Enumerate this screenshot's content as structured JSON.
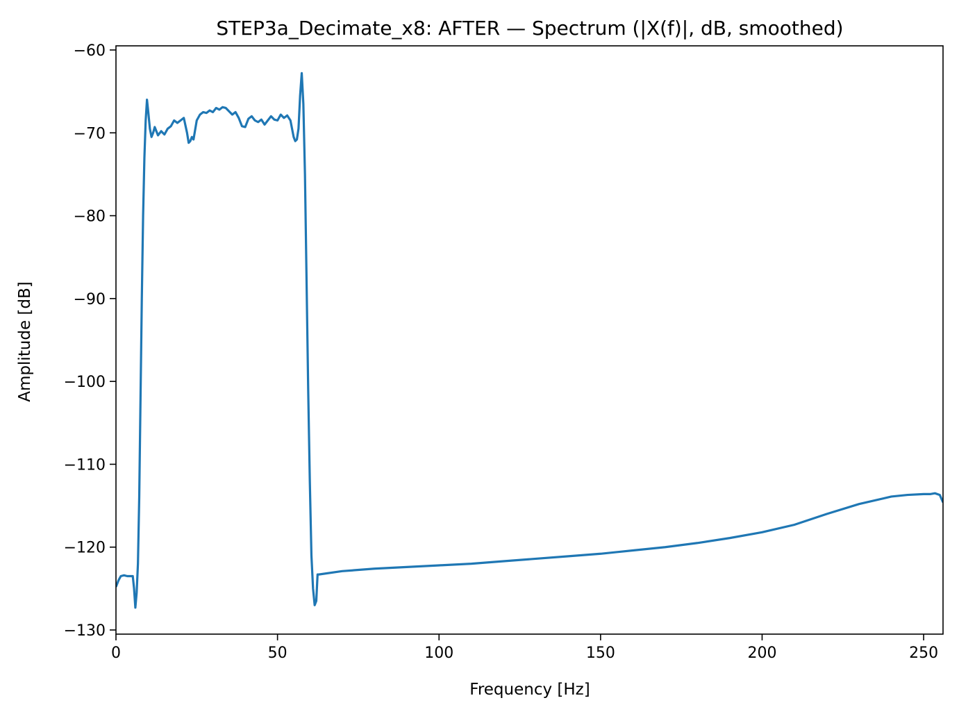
{
  "chart_data": {
    "type": "line",
    "title": "STEP3a_Decimate_x8: AFTER — Spectrum (|X(f)|, dB, smoothed)",
    "xlabel": "Frequency [Hz]",
    "ylabel": "Amplitude [dB]",
    "xlim": [
      0,
      256
    ],
    "ylim": [
      -130.5,
      -59.5
    ],
    "x_ticks": [
      0,
      50,
      100,
      150,
      200,
      250
    ],
    "y_ticks": [
      -60,
      -70,
      -80,
      -90,
      -100,
      -110,
      -120,
      -130
    ],
    "x_tick_labels": [
      "0",
      "50",
      "100",
      "150",
      "200",
      "250"
    ],
    "y_tick_labels": [
      "−60",
      "−70",
      "−80",
      "−90",
      "−100",
      "−110",
      "−120",
      "−130"
    ],
    "grid": false,
    "series": [
      {
        "color": "#1f77b4",
        "x": [
          0,
          0.8,
          1.5,
          2.5,
          3.5,
          4.5,
          5.2,
          5.6,
          6.0,
          6.4,
          6.8,
          7.2,
          7.6,
          8.0,
          8.4,
          8.8,
          9.2,
          9.6,
          10.0,
          10.5,
          11.0,
          11.5,
          12.0,
          12.5,
          13.0,
          14.0,
          15.0,
          16.0,
          17.0,
          18.0,
          19.0,
          20.0,
          21.0,
          22.0,
          22.5,
          23.0,
          23.5,
          24.0,
          25.0,
          26.0,
          27.0,
          28.0,
          29.0,
          30.0,
          31.0,
          32.0,
          33.0,
          34.0,
          35.0,
          36.0,
          37.0,
          38.0,
          39.0,
          40.0,
          41.0,
          42.0,
          43.0,
          44.0,
          45.0,
          46.0,
          47.0,
          48.0,
          49.0,
          50.0,
          51.0,
          52.0,
          53.0,
          54.0,
          55.0,
          55.5,
          56.0,
          56.5,
          57.0,
          57.5,
          58.0,
          58.5,
          59.0,
          59.5,
          60.0,
          60.5,
          61.0,
          61.5,
          62.0,
          62.4,
          62.8,
          70,
          80,
          90,
          100,
          110,
          120,
          130,
          140,
          150,
          160,
          170,
          180,
          190,
          200,
          210,
          220,
          230,
          240,
          245,
          250,
          252,
          253.5,
          255,
          256
        ],
        "y": [
          -124.8,
          -124.0,
          -123.5,
          -123.4,
          -123.5,
          -123.5,
          -123.5,
          -125.0,
          -127.3,
          -125.5,
          -122.0,
          -114.0,
          -102.0,
          -90.0,
          -80.0,
          -73.0,
          -68.5,
          -66.0,
          -67.5,
          -69.5,
          -70.5,
          -70.0,
          -69.3,
          -69.8,
          -70.3,
          -69.8,
          -70.2,
          -69.5,
          -69.2,
          -68.5,
          -68.8,
          -68.5,
          -68.2,
          -70.0,
          -71.2,
          -71.0,
          -70.5,
          -70.8,
          -68.5,
          -67.8,
          -67.5,
          -67.6,
          -67.3,
          -67.5,
          -67.0,
          -67.2,
          -66.9,
          -67.0,
          -67.4,
          -67.8,
          -67.5,
          -68.2,
          -69.2,
          -69.3,
          -68.3,
          -68.0,
          -68.5,
          -68.7,
          -68.4,
          -69.0,
          -68.5,
          -68.0,
          -68.4,
          -68.5,
          -67.8,
          -68.2,
          -67.9,
          -68.5,
          -70.5,
          -71.0,
          -70.8,
          -69.5,
          -65.5,
          -62.8,
          -66.5,
          -75.0,
          -88.0,
          -101.0,
          -112.0,
          -121.0,
          -125.0,
          -127.0,
          -126.5,
          -123.3,
          -123.3,
          -122.9,
          -122.6,
          -122.4,
          -122.2,
          -122.0,
          -121.7,
          -121.4,
          -121.1,
          -120.8,
          -120.4,
          -120.0,
          -119.5,
          -118.9,
          -118.2,
          -117.3,
          -116.0,
          -114.8,
          -113.9,
          -113.7,
          -113.6,
          -113.6,
          -113.5,
          -113.7,
          -114.6
        ]
      }
    ]
  }
}
